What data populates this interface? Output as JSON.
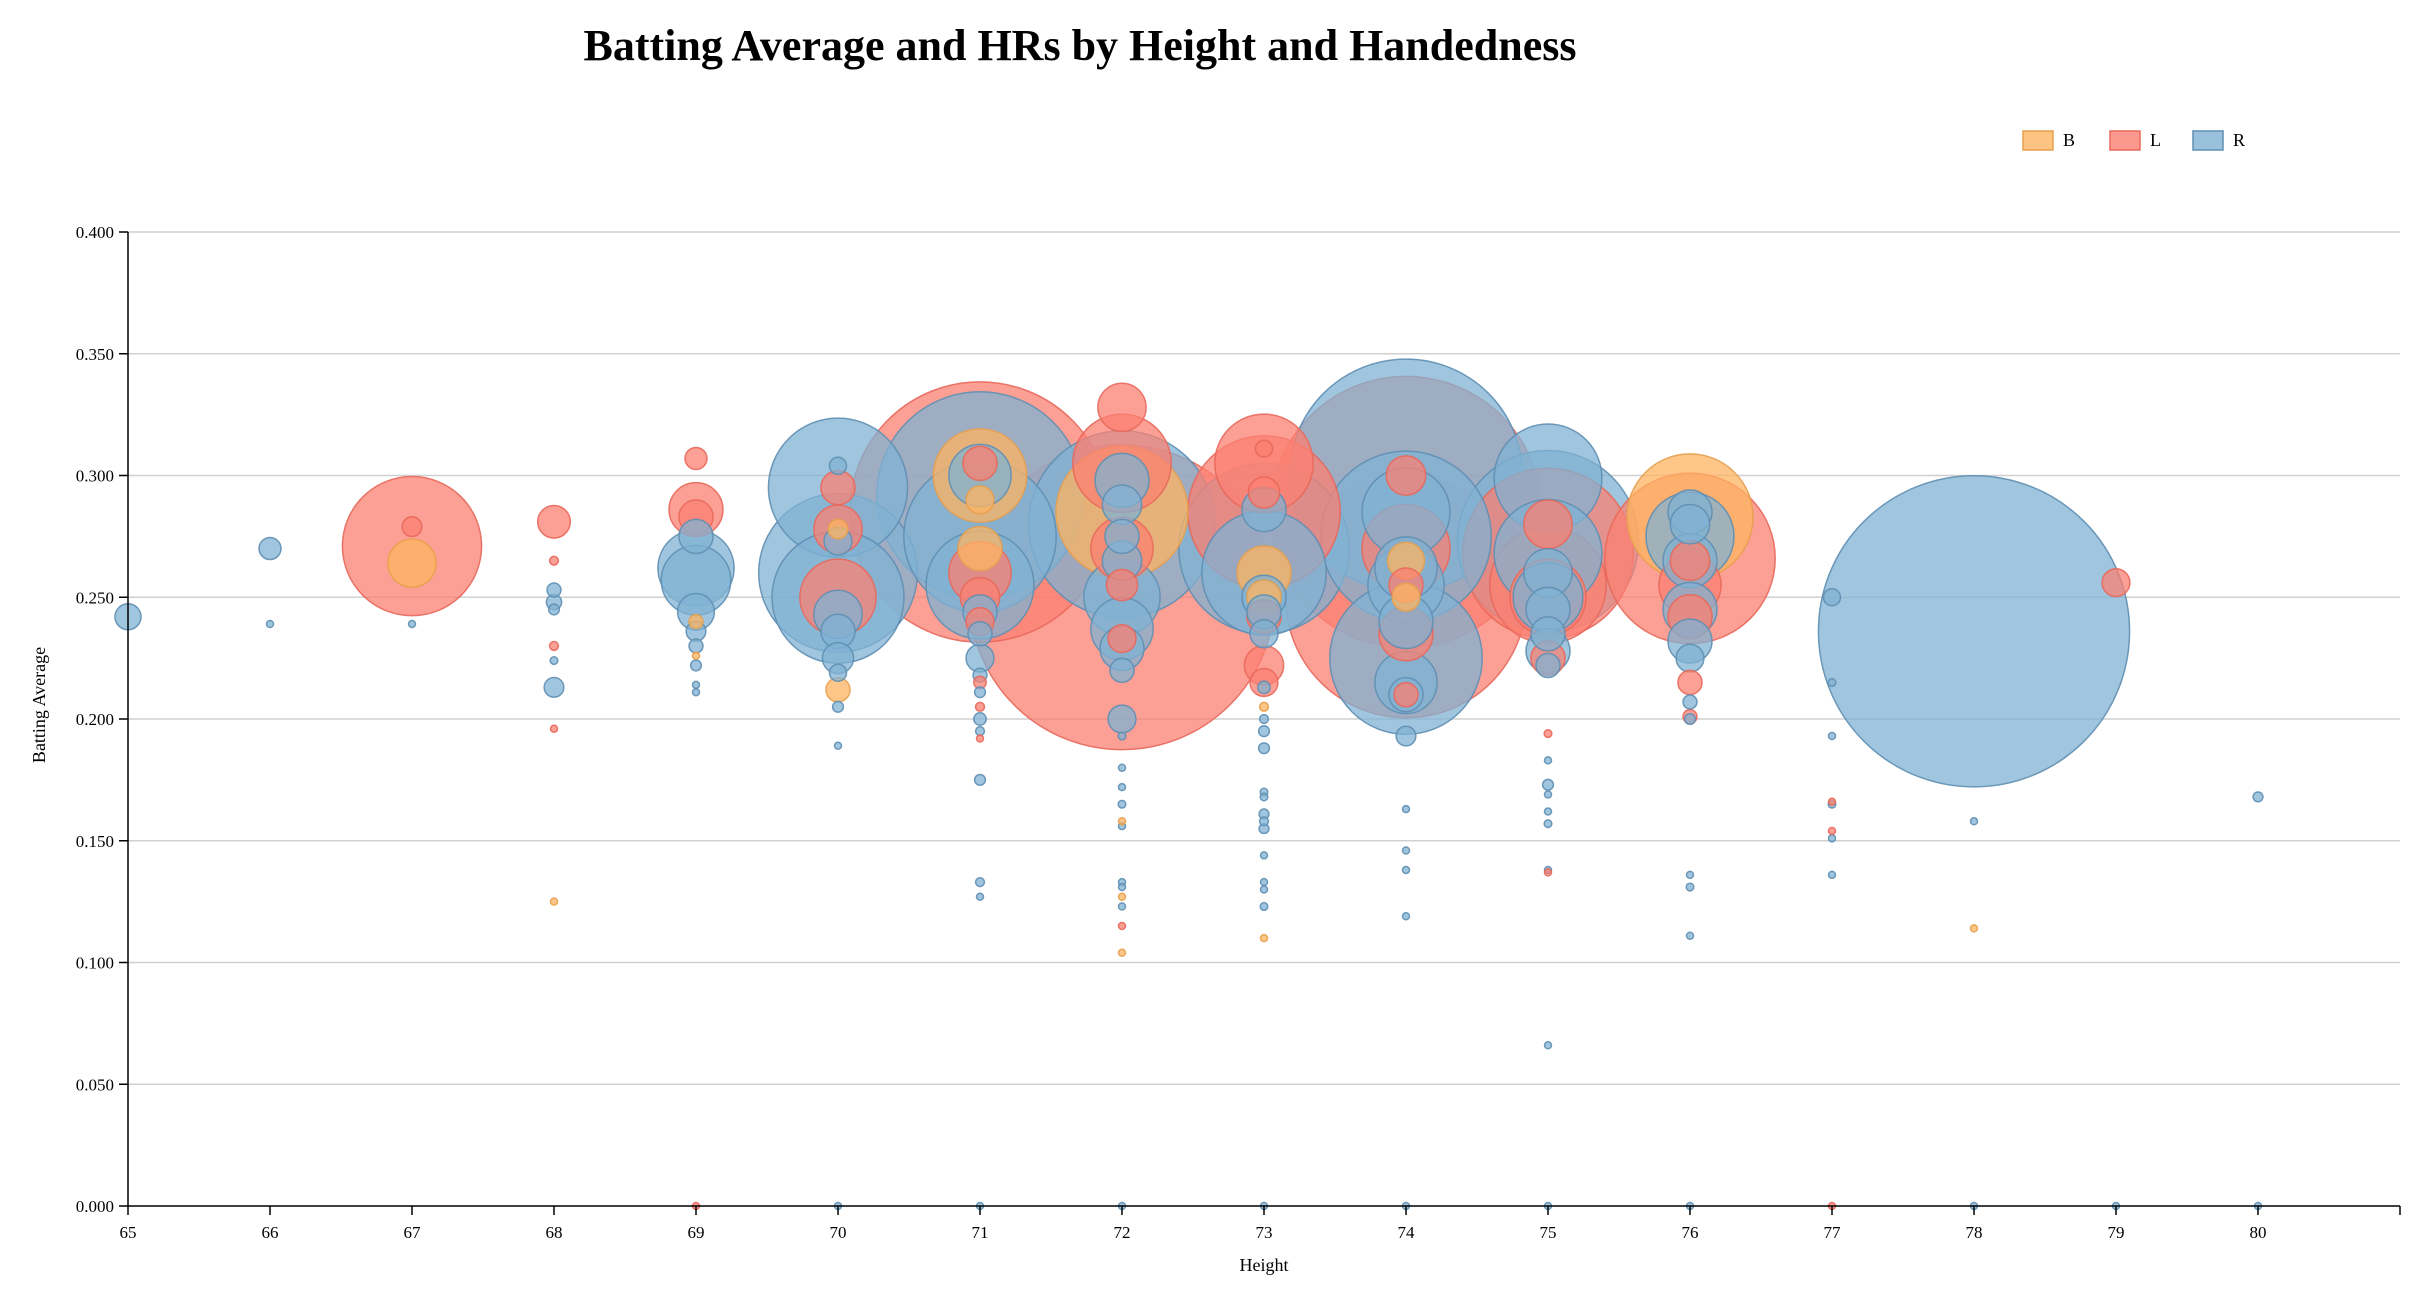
{
  "chart_data": {
    "type": "scatter",
    "title": "Batting Average and HRs by Height and Handedness",
    "xlabel": "Height",
    "ylabel": "Batting Average",
    "xlim": [
      65,
      81
    ],
    "ylim": [
      0,
      0.4
    ],
    "x_ticks": [
      65,
      66,
      67,
      68,
      69,
      70,
      71,
      72,
      73,
      74,
      75,
      76,
      77,
      78,
      79,
      80
    ],
    "y_ticks": [
      0,
      0.05,
      0.1,
      0.15,
      0.2,
      0.25,
      0.3,
      0.35,
      0.4
    ],
    "y_tick_labels": [
      "0.000",
      "0.050",
      "0.100",
      "0.150",
      "0.200",
      "0.250",
      "0.300",
      "0.350",
      "0.400"
    ],
    "grid": true,
    "legend_position": "top-right",
    "size_encoding": "HRs",
    "legend": [
      {
        "key": "B",
        "label": "B",
        "color": "#fdb462"
      },
      {
        "key": "L",
        "label": "L",
        "color": "#fb8072"
      },
      {
        "key": "R",
        "label": "R",
        "color": "#80b1d3"
      }
    ],
    "series": [
      {
        "name": "B",
        "points": [
          [
            67,
            0.264,
            120
          ],
          [
            68,
            0.125,
            0
          ],
          [
            69,
            0.24,
            10
          ],
          [
            69,
            0.226,
            2
          ],
          [
            70,
            0.212,
            30
          ],
          [
            70,
            0.278,
            20
          ],
          [
            71,
            0.3,
            450
          ],
          [
            71,
            0.29,
            40
          ],
          [
            71,
            0.27,
            100
          ],
          [
            72,
            0.285,
            900
          ],
          [
            72,
            0.158,
            0
          ],
          [
            72,
            0.127,
            0
          ],
          [
            72,
            0.104,
            0
          ],
          [
            73,
            0.26,
            150
          ],
          [
            73,
            0.25,
            60
          ],
          [
            73,
            0.205,
            4
          ],
          [
            73,
            0.11,
            0
          ],
          [
            74,
            0.265,
            70
          ],
          [
            74,
            0.25,
            40
          ],
          [
            76,
            0.283,
            820
          ],
          [
            78,
            0.114,
            0
          ]
        ]
      },
      {
        "name": "L",
        "points": [
          [
            67,
            0.271,
            1000
          ],
          [
            67,
            0.279,
            20
          ],
          [
            68,
            0.281,
            55
          ],
          [
            68,
            0.265,
            4
          ],
          [
            68,
            0.23,
            4
          ],
          [
            68,
            0.196,
            2
          ],
          [
            69,
            0.307,
            25
          ],
          [
            69,
            0.286,
            150
          ],
          [
            69,
            0.283,
            60
          ],
          [
            69,
            0.0,
            0
          ],
          [
            70,
            0.295,
            60
          ],
          [
            70,
            0.278,
            120
          ],
          [
            70,
            0.25,
            300
          ],
          [
            71,
            0.285,
            3500
          ],
          [
            71,
            0.305,
            60
          ],
          [
            71,
            0.26,
            200
          ],
          [
            71,
            0.25,
            80
          ],
          [
            71,
            0.24,
            40
          ],
          [
            71,
            0.215,
            8
          ],
          [
            71,
            0.205,
            4
          ],
          [
            71,
            0.192,
            2
          ],
          [
            72,
            0.328,
            120
          ],
          [
            72,
            0.305,
            500
          ],
          [
            72,
            0.25,
            4800
          ],
          [
            72,
            0.27,
            200
          ],
          [
            72,
            0.255,
            50
          ],
          [
            72,
            0.233,
            40
          ],
          [
            72,
            0.115,
            1
          ],
          [
            73,
            0.305,
            500
          ],
          [
            73,
            0.311,
            15
          ],
          [
            73,
            0.293,
            50
          ],
          [
            73,
            0.285,
            1200
          ],
          [
            73,
            0.242,
            60
          ],
          [
            73,
            0.222,
            80
          ],
          [
            73,
            0.215,
            40
          ],
          [
            74,
            0.285,
            3800
          ],
          [
            74,
            0.25,
            3000
          ],
          [
            74,
            0.3,
            80
          ],
          [
            74,
            0.27,
            400
          ],
          [
            74,
            0.255,
            60
          ],
          [
            74,
            0.235,
            150
          ],
          [
            74,
            0.21,
            30
          ],
          [
            75,
            0.268,
            1500
          ],
          [
            75,
            0.255,
            700
          ],
          [
            75,
            0.28,
            120
          ],
          [
            75,
            0.25,
            300
          ],
          [
            75,
            0.225,
            60
          ],
          [
            75,
            0.194,
            3
          ],
          [
            75,
            0.137,
            1
          ],
          [
            76,
            0.266,
            1500
          ],
          [
            76,
            0.265,
            80
          ],
          [
            76,
            0.255,
            200
          ],
          [
            76,
            0.242,
            100
          ],
          [
            76,
            0.215,
            30
          ],
          [
            76,
            0.201,
            10
          ],
          [
            77,
            0.166,
            2
          ],
          [
            77,
            0.154,
            1
          ],
          [
            77,
            0.0,
            0
          ],
          [
            79,
            0.256,
            40
          ]
        ]
      },
      {
        "name": "R",
        "points": [
          [
            65,
            0.242,
            35
          ],
          [
            66,
            0.27,
            25
          ],
          [
            66,
            0.239,
            1
          ],
          [
            67,
            0.239,
            2
          ],
          [
            68,
            0.253,
            10
          ],
          [
            68,
            0.248,
            12
          ],
          [
            68,
            0.245,
            6
          ],
          [
            68,
            0.224,
            3
          ],
          [
            68,
            0.213,
            20
          ],
          [
            69,
            0.275,
            60
          ],
          [
            69,
            0.262,
            300
          ],
          [
            69,
            0.257,
            250
          ],
          [
            69,
            0.244,
            70
          ],
          [
            69,
            0.236,
            20
          ],
          [
            69,
            0.23,
            10
          ],
          [
            69,
            0.222,
            6
          ],
          [
            69,
            0.214,
            2
          ],
          [
            69,
            0.211,
            1
          ],
          [
            70,
            0.304,
            15
          ],
          [
            70,
            0.295,
            1000
          ],
          [
            70,
            0.26,
            1300
          ],
          [
            70,
            0.25,
            900
          ],
          [
            70,
            0.273,
            40
          ],
          [
            70,
            0.243,
            120
          ],
          [
            70,
            0.236,
            60
          ],
          [
            70,
            0.225,
            50
          ],
          [
            70,
            0.219,
            15
          ],
          [
            70,
            0.205,
            6
          ],
          [
            70,
            0.189,
            2
          ],
          [
            70,
            0.0,
            1
          ],
          [
            71,
            0.292,
            2200
          ],
          [
            71,
            0.275,
            1200
          ],
          [
            71,
            0.3,
            200
          ],
          [
            71,
            0.255,
            600
          ],
          [
            71,
            0.244,
            60
          ],
          [
            71,
            0.235,
            30
          ],
          [
            71,
            0.225,
            40
          ],
          [
            71,
            0.218,
            10
          ],
          [
            71,
            0.211,
            6
          ],
          [
            71,
            0.2,
            8
          ],
          [
            71,
            0.195,
            4
          ],
          [
            71,
            0.175,
            6
          ],
          [
            71,
            0.133,
            4
          ],
          [
            71,
            0.127,
            2
          ],
          [
            71,
            0.0,
            1
          ],
          [
            72,
            0.28,
            1800
          ],
          [
            72,
            0.298,
            150
          ],
          [
            72,
            0.288,
            80
          ],
          [
            72,
            0.275,
            60
          ],
          [
            72,
            0.265,
            80
          ],
          [
            72,
            0.25,
            300
          ],
          [
            72,
            0.237,
            200
          ],
          [
            72,
            0.229,
            100
          ],
          [
            72,
            0.22,
            30
          ],
          [
            72,
            0.2,
            40
          ],
          [
            72,
            0.193,
            3
          ],
          [
            72,
            0.18,
            2
          ],
          [
            72,
            0.172,
            1
          ],
          [
            72,
            0.165,
            3
          ],
          [
            72,
            0.156,
            2
          ],
          [
            72,
            0.133,
            2
          ],
          [
            72,
            0.131,
            1
          ],
          [
            72,
            0.123,
            1
          ],
          [
            72,
            0.0,
            1
          ],
          [
            73,
            0.27,
            1500
          ],
          [
            73,
            0.26,
            800
          ],
          [
            73,
            0.286,
            100
          ],
          [
            73,
            0.25,
            100
          ],
          [
            73,
            0.244,
            60
          ],
          [
            73,
            0.235,
            40
          ],
          [
            73,
            0.213,
            8
          ],
          [
            73,
            0.2,
            4
          ],
          [
            73,
            0.195,
            6
          ],
          [
            73,
            0.188,
            6
          ],
          [
            73,
            0.17,
            3
          ],
          [
            73,
            0.168,
            3
          ],
          [
            73,
            0.161,
            5
          ],
          [
            73,
            0.158,
            4
          ],
          [
            73,
            0.155,
            5
          ],
          [
            73,
            0.144,
            2
          ],
          [
            73,
            0.133,
            2
          ],
          [
            73,
            0.13,
            2
          ],
          [
            73,
            0.123,
            3
          ],
          [
            73,
            0.0,
            1
          ],
          [
            74,
            0.3,
            2800
          ],
          [
            74,
            0.275,
            1500
          ],
          [
            74,
            0.285,
            400
          ],
          [
            74,
            0.262,
            200
          ],
          [
            74,
            0.255,
            300
          ],
          [
            74,
            0.24,
            150
          ],
          [
            74,
            0.225,
            1200
          ],
          [
            74,
            0.215,
            200
          ],
          [
            74,
            0.21,
            60
          ],
          [
            74,
            0.193,
            20
          ],
          [
            74,
            0.163,
            1
          ],
          [
            74,
            0.146,
            1
          ],
          [
            74,
            0.138,
            1
          ],
          [
            74,
            0.119,
            1
          ],
          [
            74,
            0.0,
            1
          ],
          [
            75,
            0.299,
            600
          ],
          [
            75,
            0.273,
            1700
          ],
          [
            75,
            0.268,
            600
          ],
          [
            75,
            0.26,
            120
          ],
          [
            75,
            0.25,
            250
          ],
          [
            75,
            0.245,
            100
          ],
          [
            75,
            0.235,
            60
          ],
          [
            75,
            0.228,
            100
          ],
          [
            75,
            0.222,
            30
          ],
          [
            75,
            0.183,
            1
          ],
          [
            75,
            0.173,
            6
          ],
          [
            75,
            0.169,
            2
          ],
          [
            75,
            0.162,
            2
          ],
          [
            75,
            0.157,
            3
          ],
          [
            75,
            0.138,
            2
          ],
          [
            75,
            0.066,
            1
          ],
          [
            75,
            0.0,
            2
          ],
          [
            76,
            0.285,
            100
          ],
          [
            76,
            0.275,
            400
          ],
          [
            76,
            0.28,
            80
          ],
          [
            76,
            0.265,
            150
          ],
          [
            76,
            0.245,
            150
          ],
          [
            76,
            0.232,
            100
          ],
          [
            76,
            0.225,
            40
          ],
          [
            76,
            0.207,
            10
          ],
          [
            76,
            0.2,
            6
          ],
          [
            76,
            0.136,
            2
          ],
          [
            76,
            0.131,
            3
          ],
          [
            76,
            0.111,
            1
          ],
          [
            76,
            0.0,
            2
          ],
          [
            77,
            0.25,
            15
          ],
          [
            77,
            0.215,
            3
          ],
          [
            77,
            0.193,
            2
          ],
          [
            77,
            0.165,
            3
          ],
          [
            77,
            0.151,
            2
          ],
          [
            77,
            0.136,
            2
          ],
          [
            78,
            0.236,
            5000
          ],
          [
            78,
            0.158,
            1
          ],
          [
            78,
            0.0,
            1
          ],
          [
            79,
            0.0,
            1
          ],
          [
            80,
            0.168,
            5
          ],
          [
            80,
            0.0,
            1
          ]
        ]
      }
    ]
  }
}
